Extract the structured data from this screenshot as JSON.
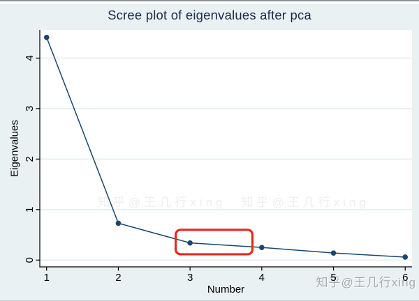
{
  "chart_data": {
    "type": "line",
    "title": "Scree plot of eigenvalues after pca",
    "xlabel": "Number",
    "ylabel": "Eigenvalues",
    "x": [
      1,
      2,
      3,
      4,
      5,
      6
    ],
    "values": [
      4.41,
      0.73,
      0.34,
      0.25,
      0.14,
      0.06
    ],
    "series_name": "Eigenvalues",
    "xticks": [
      "1",
      "2",
      "3",
      "4",
      "5",
      "6"
    ],
    "yticks": [
      "0",
      "1",
      "2",
      "3",
      "4"
    ],
    "xlim": [
      0.905,
      6.095
    ],
    "ylim": [
      -0.134,
      4.557
    ],
    "grid": true,
    "legend": "none",
    "colors": {
      "series": "#1a476f",
      "grid": "#e6edef",
      "axis": "#000000",
      "plot_bg": "#ffffff",
      "outer_bg": "#eaf1f3",
      "title": "#1c2b4d"
    },
    "annotation_box": {
      "x1": 2.8,
      "x2": 3.87,
      "y1": 0.115,
      "y2": 0.6,
      "color": "#e8271d"
    }
  },
  "watermark": {
    "text": "知乎@王几行xing",
    "faint_text": "知乎@王几行xing　知乎@王几行xing",
    "color": "#999fa4"
  },
  "window": {
    "top_edge_color": "#8d9399"
  }
}
